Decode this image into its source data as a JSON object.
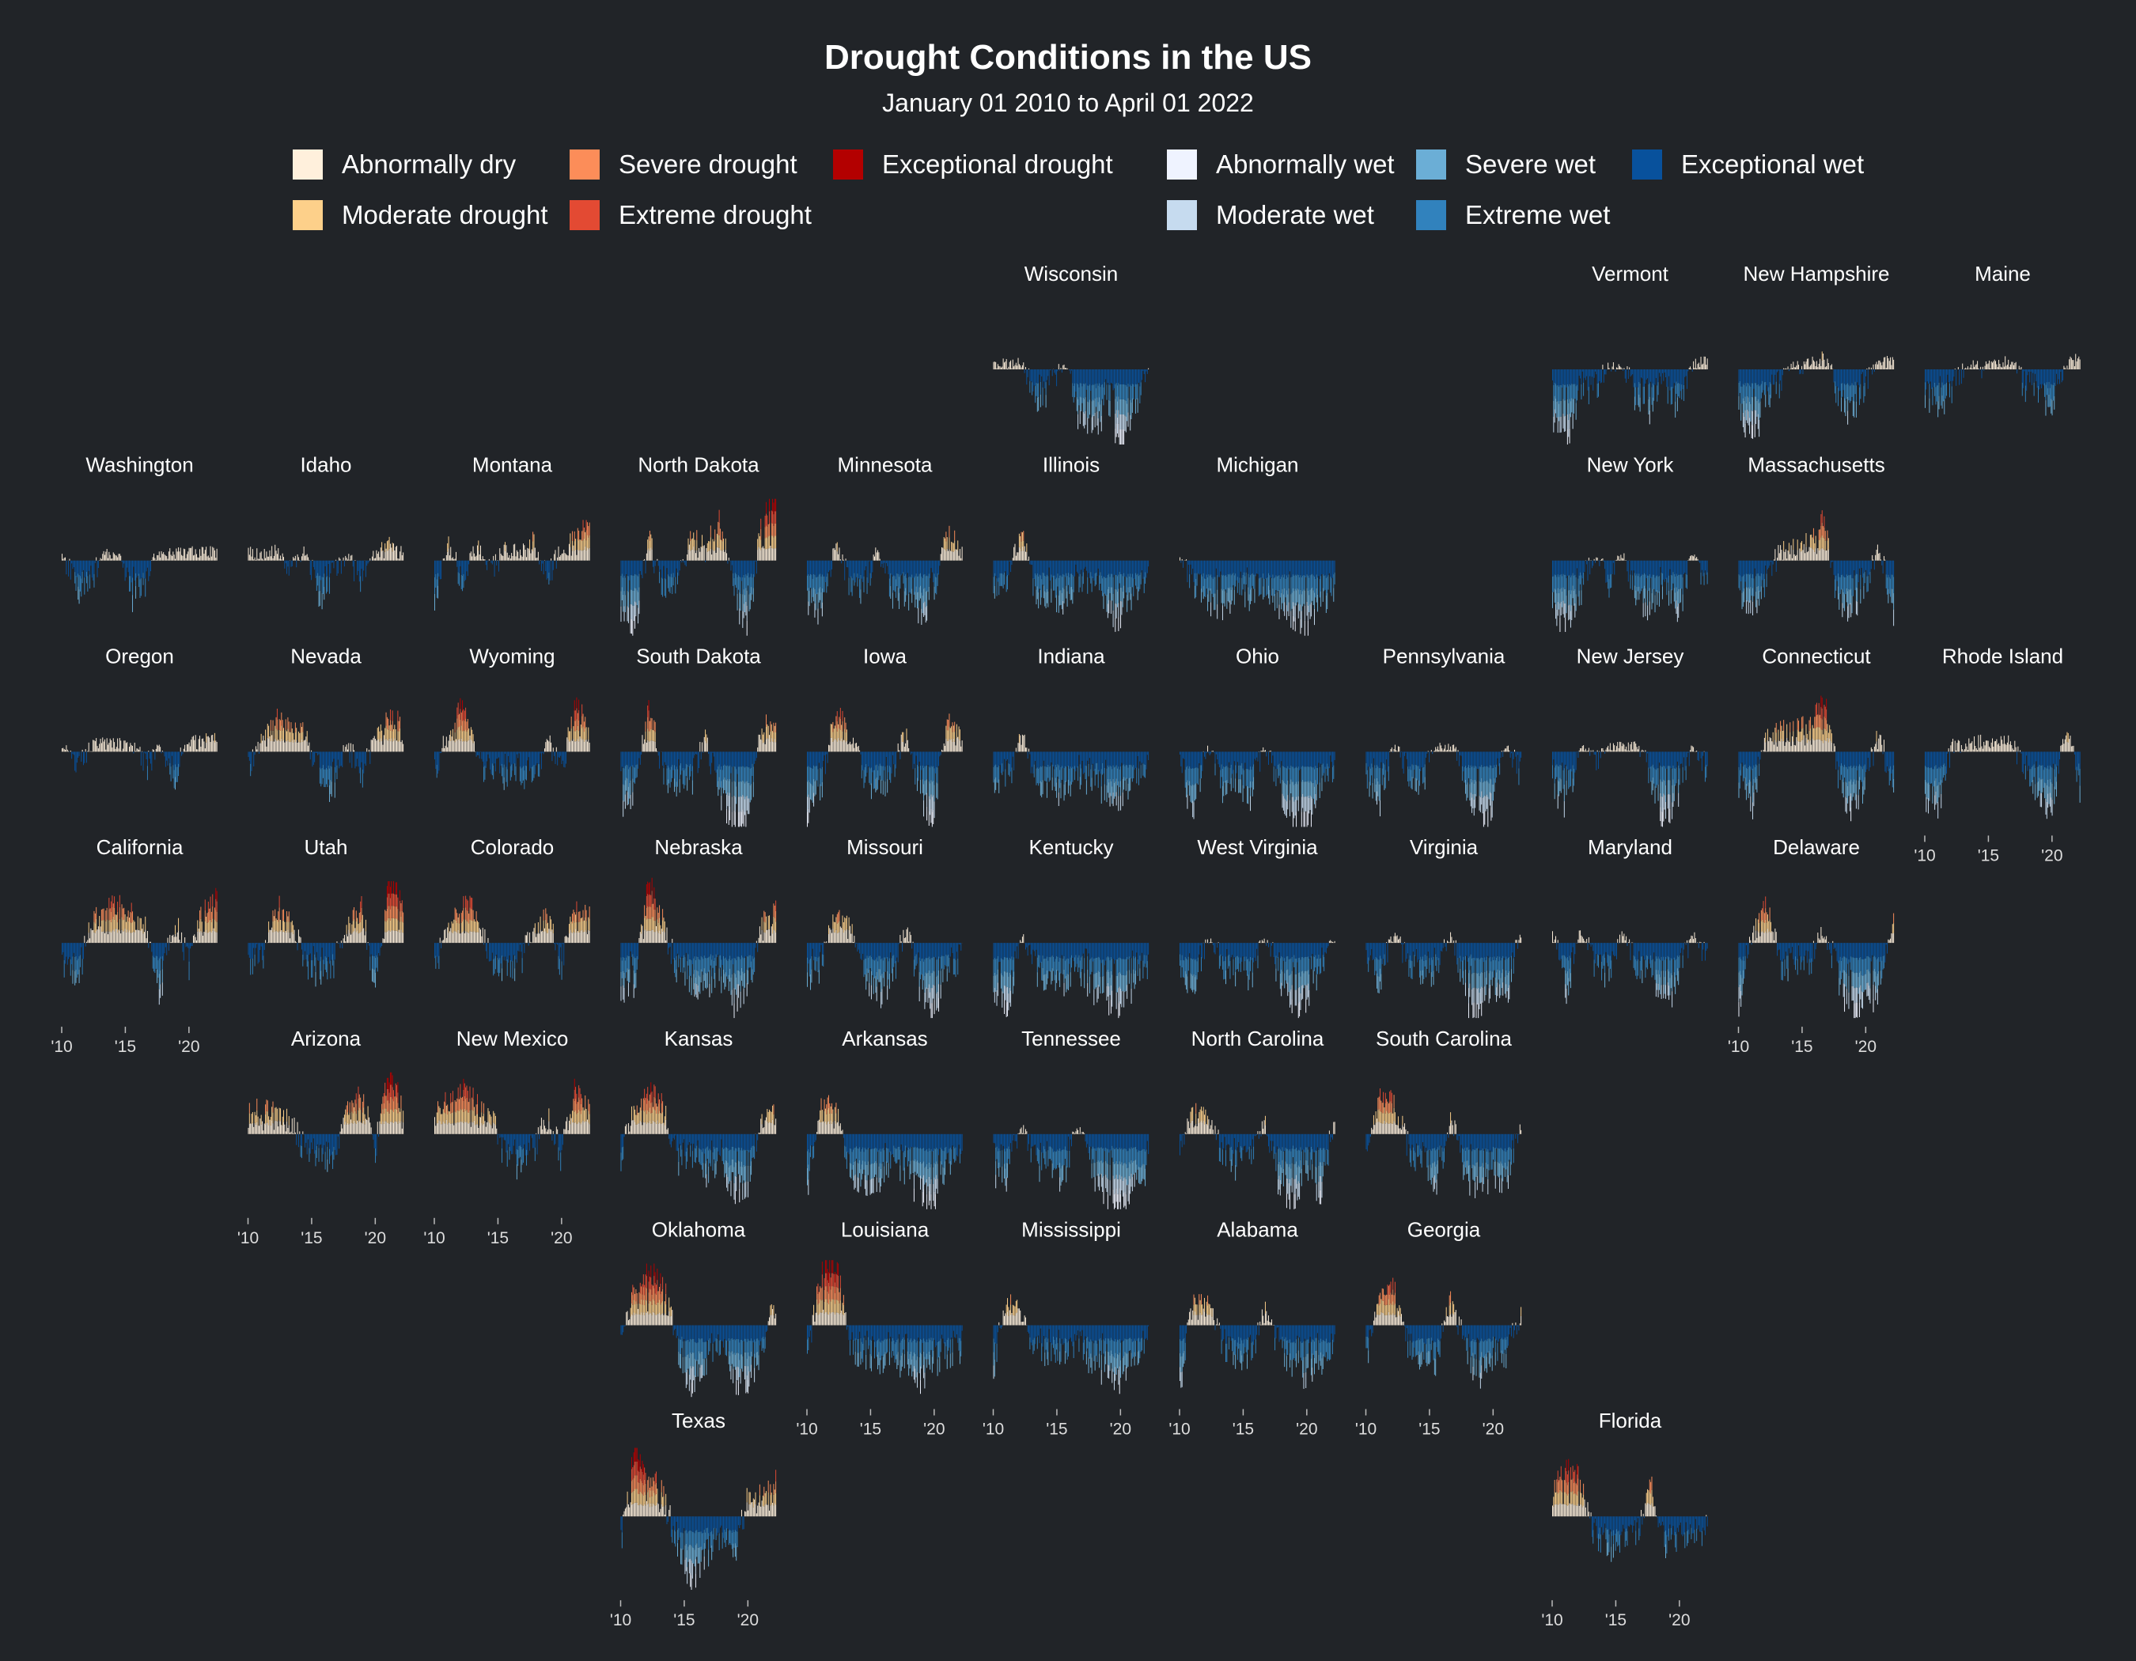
{
  "title": "Drought Conditions in the US",
  "subtitle": "January 01 2010 to April 01 2022",
  "legend": [
    {
      "label": "Abnormally dry",
      "color": "#fff0dc"
    },
    {
      "label": "Moderate drought",
      "color": "#fdd08a"
    },
    {
      "label": "Severe drought",
      "color": "#fc8d59"
    },
    {
      "label": "Extreme drought",
      "color": "#e34a33"
    },
    {
      "label": "Exceptional drought",
      "color": "#b30000"
    },
    {
      "label": "Abnormally wet",
      "color": "#eff3ff"
    },
    {
      "label": "Moderate wet",
      "color": "#c6dbef"
    },
    {
      "label": "Severe wet",
      "color": "#6baed6"
    },
    {
      "label": "Extreme wet",
      "color": "#3182bd"
    },
    {
      "label": "Exceptional wet",
      "color": "#08519c"
    }
  ],
  "chart_data": {
    "type": "bar",
    "layout": "small multiples arranged as a grid map of US states",
    "x_range": [
      "2010-01-01",
      "2022-04-01"
    ],
    "x_ticks": [
      "'10",
      "'15",
      "'20"
    ],
    "x_tick_values": [
      2010,
      2015,
      2020
    ],
    "axis_shown_for": [
      "California",
      "Arizona",
      "New Mexico",
      "Texas",
      "Louisiana",
      "Mississippi",
      "Alabama",
      "Georgia",
      "Florida",
      "Delaware",
      "Rhode Island"
    ],
    "sign_convention": "dry conditions above the baseline, wet conditions below",
    "states": [
      {
        "name": "Wisconsin",
        "row": 0,
        "col": 5,
        "profile": [
          0.3,
          0.2,
          0.3,
          -0.5,
          -0.2,
          0.2,
          -0.6,
          -0.8,
          -0.5,
          -0.9,
          -0.6,
          0.2
        ],
        "drought_peak": 0.35
      },
      {
        "name": "Vermont",
        "row": 0,
        "col": 8,
        "profile": [
          -0.6,
          -0.9,
          -0.3,
          -0.3,
          0.2,
          0.1,
          -0.4,
          -0.6,
          -0.2,
          -0.5,
          0.2,
          0.4
        ],
        "drought_peak": 0.35
      },
      {
        "name": "New Hampshire",
        "row": 0,
        "col": 9,
        "profile": [
          -0.5,
          -1.0,
          -0.3,
          -0.2,
          0.1,
          0.2,
          0.5,
          -0.3,
          -0.6,
          -0.2,
          0.3,
          0.3
        ],
        "drought_peak": 0.4
      },
      {
        "name": "Maine",
        "row": 0,
        "col": 10,
        "profile": [
          -0.3,
          -0.5,
          -0.2,
          0.2,
          0.1,
          0.2,
          0.4,
          -0.2,
          -0.3,
          -0.6,
          0.2,
          0.6
        ],
        "drought_peak": 0.35
      },
      {
        "name": "Washington",
        "row": 1,
        "col": 0,
        "profile": [
          0.2,
          -0.4,
          -0.3,
          0.3,
          0.2,
          -0.5,
          -0.3,
          0.4,
          0.3,
          0.4,
          0.5,
          0.3
        ],
        "drought_peak": 0.35
      },
      {
        "name": "Idaho",
        "row": 1,
        "col": 1,
        "profile": [
          0.3,
          0.2,
          0.4,
          -0.2,
          0.3,
          -0.5,
          -0.2,
          0.2,
          -0.3,
          0.2,
          0.6,
          0.3
        ],
        "drought_peak": 0.45
      },
      {
        "name": "Montana",
        "row": 1,
        "col": 2,
        "profile": [
          -0.5,
          0.4,
          -0.4,
          0.5,
          -0.2,
          0.3,
          0.2,
          0.5,
          -0.3,
          0.3,
          0.6,
          0.9
        ],
        "drought_peak": 0.6
      },
      {
        "name": "North Dakota",
        "row": 1,
        "col": 3,
        "profile": [
          -0.7,
          -0.9,
          0.3,
          -0.4,
          -0.3,
          0.4,
          0.2,
          0.7,
          -0.4,
          -1.0,
          0.6,
          1.0
        ],
        "drought_peak": 0.9
      },
      {
        "name": "Minnesota",
        "row": 1,
        "col": 4,
        "profile": [
          -0.5,
          -0.7,
          0.3,
          -0.3,
          -0.4,
          0.2,
          -0.5,
          -0.4,
          -0.7,
          -0.5,
          0.8,
          0.2
        ],
        "drought_peak": 0.6
      },
      {
        "name": "Illinois",
        "row": 1,
        "col": 5,
        "profile": [
          -0.4,
          -0.3,
          0.7,
          -0.5,
          -0.4,
          -0.6,
          -0.3,
          -0.2,
          -0.6,
          -0.8,
          -0.4,
          -0.2
        ],
        "drought_peak": 0.6
      },
      {
        "name": "Michigan",
        "row": 1,
        "col": 6,
        "profile": [
          0.2,
          -0.3,
          -0.5,
          -0.6,
          -0.4,
          -0.5,
          -0.3,
          -0.6,
          -0.7,
          -0.8,
          -0.6,
          -0.4
        ],
        "drought_peak": 0.2
      },
      {
        "name": "New York",
        "row": 1,
        "col": 8,
        "profile": [
          -0.6,
          -0.9,
          -0.4,
          0.2,
          -0.3,
          0.2,
          -0.5,
          -0.6,
          -0.3,
          -0.7,
          0.2,
          -0.4
        ],
        "drought_peak": 0.3
      },
      {
        "name": "Massachusetts",
        "row": 1,
        "col": 9,
        "profile": [
          -0.4,
          -0.6,
          -0.2,
          0.2,
          0.2,
          0.3,
          0.8,
          -0.5,
          -0.7,
          -0.3,
          0.3,
          -0.8
        ],
        "drought_peak": 0.8
      },
      {
        "name": "Oregon",
        "row": 2,
        "col": 0,
        "profile": [
          0.3,
          -0.3,
          0.2,
          0.4,
          0.3,
          0.2,
          -0.2,
          0.2,
          -0.4,
          0.4,
          0.5,
          0.5
        ],
        "drought_peak": 0.4
      },
      {
        "name": "Nevada",
        "row": 2,
        "col": 1,
        "profile": [
          -0.2,
          0.3,
          0.7,
          0.5,
          0.4,
          -0.3,
          -0.5,
          0.2,
          -0.4,
          0.3,
          0.7,
          0.6
        ],
        "drought_peak": 0.7
      },
      {
        "name": "Wyoming",
        "row": 2,
        "col": 2,
        "profile": [
          -0.3,
          0.3,
          0.9,
          -0.2,
          -0.3,
          -0.3,
          -0.2,
          -0.4,
          0.2,
          -0.3,
          0.8,
          0.5
        ],
        "drought_peak": 0.8
      },
      {
        "name": "South Dakota",
        "row": 2,
        "col": 3,
        "profile": [
          -0.7,
          -0.6,
          0.8,
          -0.3,
          -0.5,
          -0.4,
          0.2,
          -0.6,
          -0.9,
          -1.0,
          0.5,
          0.4
        ],
        "drought_peak": 0.8
      },
      {
        "name": "Iowa",
        "row": 2,
        "col": 4,
        "profile": [
          -0.8,
          -0.5,
          0.8,
          0.6,
          -0.4,
          -0.5,
          -0.3,
          0.4,
          -0.6,
          -0.9,
          0.6,
          0.3
        ],
        "drought_peak": 0.7
      },
      {
        "name": "Indiana",
        "row": 2,
        "col": 5,
        "profile": [
          -0.4,
          -0.5,
          0.5,
          -0.4,
          -0.5,
          -0.6,
          -0.3,
          -0.4,
          -0.5,
          -0.7,
          -0.3,
          -0.2
        ],
        "drought_peak": 0.5
      },
      {
        "name": "Ohio",
        "row": 2,
        "col": 6,
        "profile": [
          -0.3,
          -0.8,
          0.2,
          -0.5,
          -0.4,
          -0.6,
          0.2,
          -0.5,
          -0.8,
          -1.0,
          -0.4,
          -0.3
        ],
        "drought_peak": 0.25
      },
      {
        "name": "Pennsylvania",
        "row": 2,
        "col": 7,
        "profile": [
          -0.3,
          -0.7,
          0.2,
          -0.3,
          -0.4,
          0.3,
          0.3,
          -0.4,
          -0.9,
          -0.8,
          0.2,
          -0.3
        ],
        "drought_peak": 0.3
      },
      {
        "name": "New Jersey",
        "row": 2,
        "col": 8,
        "profile": [
          -0.4,
          -0.8,
          0.3,
          -0.2,
          0.2,
          0.3,
          0.3,
          -0.4,
          -0.9,
          -0.5,
          0.2,
          -0.3
        ],
        "drought_peak": 0.3
      },
      {
        "name": "Connecticut",
        "row": 2,
        "col": 9,
        "profile": [
          -0.4,
          -0.7,
          0.2,
          0.3,
          0.3,
          0.4,
          0.9,
          -0.3,
          -0.8,
          -0.4,
          0.3,
          -0.6
        ],
        "drought_peak": 0.9
      },
      {
        "name": "Rhode Island",
        "row": 2,
        "col": 10,
        "profile": [
          -0.6,
          -0.7,
          0.2,
          0.2,
          0.3,
          0.3,
          0.3,
          -0.2,
          -0.5,
          -0.9,
          0.6,
          -0.5
        ],
        "drought_peak": 0.5
      },
      {
        "name": "California",
        "row": 3,
        "col": 0,
        "profile": [
          -0.3,
          -0.6,
          0.3,
          0.6,
          0.7,
          0.5,
          0.3,
          -0.7,
          0.5,
          -0.3,
          0.6,
          0.9
        ],
        "drought_peak": 0.8
      },
      {
        "name": "Utah",
        "row": 3,
        "col": 1,
        "profile": [
          -0.3,
          -0.2,
          0.6,
          0.4,
          -0.3,
          -0.4,
          -0.3,
          0.2,
          0.6,
          -0.7,
          1.0,
          0.7
        ],
        "drought_peak": 0.9
      },
      {
        "name": "Colorado",
        "row": 3,
        "col": 2,
        "profile": [
          -0.3,
          0.2,
          0.8,
          0.5,
          -0.3,
          -0.4,
          -0.3,
          0.2,
          0.5,
          -0.3,
          0.7,
          0.5
        ],
        "drought_peak": 0.8
      },
      {
        "name": "Nebraska",
        "row": 3,
        "col": 3,
        "profile": [
          -0.6,
          -0.5,
          1.0,
          0.3,
          -0.4,
          -0.5,
          -0.6,
          -0.4,
          -0.8,
          -0.6,
          0.3,
          0.5
        ],
        "drought_peak": 0.95
      },
      {
        "name": "Missouri",
        "row": 3,
        "col": 4,
        "profile": [
          -0.5,
          -0.3,
          0.7,
          0.4,
          -0.4,
          -0.7,
          -0.5,
          0.3,
          -0.6,
          -0.9,
          -0.3,
          -0.2
        ],
        "drought_peak": 0.6
      },
      {
        "name": "Kentucky",
        "row": 3,
        "col": 5,
        "profile": [
          -0.6,
          -0.9,
          0.3,
          -0.4,
          -0.5,
          -0.6,
          -0.3,
          -0.6,
          -0.8,
          -0.9,
          -0.5,
          -0.3
        ],
        "drought_peak": 0.3
      },
      {
        "name": "West Virginia",
        "row": 3,
        "col": 6,
        "profile": [
          -0.3,
          -0.6,
          0.2,
          -0.3,
          -0.4,
          -0.5,
          0.2,
          -0.4,
          -1.0,
          -0.7,
          -0.3,
          0.2
        ],
        "drought_peak": 0.2
      },
      {
        "name": "Virginia",
        "row": 3,
        "col": 7,
        "profile": [
          -0.3,
          -0.5,
          0.3,
          -0.3,
          -0.5,
          -0.4,
          0.3,
          -0.7,
          -1.0,
          -0.5,
          -0.8,
          0.4
        ],
        "drought_peak": 0.35
      },
      {
        "name": "Maryland",
        "row": 3,
        "col": 8,
        "profile": [
          0.3,
          -0.7,
          0.4,
          -0.3,
          -0.4,
          0.3,
          -0.3,
          -0.4,
          -0.8,
          -0.5,
          0.3,
          -0.3
        ],
        "drought_peak": 0.4
      },
      {
        "name": "Delaware",
        "row": 3,
        "col": 9,
        "profile": [
          -1.0,
          0.3,
          0.8,
          -0.4,
          -0.2,
          -0.3,
          0.3,
          -0.4,
          -1.0,
          -0.6,
          -0.8,
          0.4
        ],
        "drought_peak": 0.7
      },
      {
        "name": "Arizona",
        "row": 4,
        "col": 1,
        "profile": [
          0.3,
          0.4,
          0.3,
          0.2,
          -0.2,
          -0.3,
          -0.3,
          0.3,
          0.8,
          -0.2,
          1.0,
          0.4
        ],
        "drought_peak": 0.9
      },
      {
        "name": "New Mexico",
        "row": 4,
        "col": 2,
        "profile": [
          0.3,
          0.6,
          0.8,
          0.5,
          0.3,
          -0.3,
          -0.4,
          -0.2,
          0.3,
          -0.3,
          0.8,
          0.4
        ],
        "drought_peak": 0.85
      },
      {
        "name": "Kansas",
        "row": 4,
        "col": 3,
        "profile": [
          -0.3,
          0.5,
          0.8,
          0.5,
          -0.4,
          -0.3,
          -0.5,
          -0.4,
          -0.7,
          -0.8,
          0.3,
          0.4
        ],
        "drought_peak": 0.8
      },
      {
        "name": "Arkansas",
        "row": 4,
        "col": 4,
        "profile": [
          -0.8,
          0.7,
          0.6,
          -0.5,
          -0.6,
          -0.7,
          -0.3,
          -0.5,
          -0.8,
          -0.9,
          -0.4,
          -0.3
        ],
        "drought_peak": 0.7
      },
      {
        "name": "Tennessee",
        "row": 4,
        "col": 5,
        "profile": [
          -0.5,
          -0.6,
          0.3,
          -0.4,
          -0.5,
          -0.6,
          0.3,
          -0.5,
          -0.8,
          -1.0,
          -0.7,
          -0.4
        ],
        "drought_peak": 0.3
      },
      {
        "name": "North Carolina",
        "row": 4,
        "col": 6,
        "profile": [
          -0.3,
          0.6,
          0.4,
          -0.3,
          -0.4,
          -0.3,
          0.3,
          -0.6,
          -0.9,
          -0.4,
          -0.8,
          0.3
        ],
        "drought_peak": 0.6
      },
      {
        "name": "South Carolina",
        "row": 4,
        "col": 7,
        "profile": [
          -0.4,
          0.8,
          0.6,
          -0.2,
          -0.4,
          -0.7,
          0.3,
          -0.5,
          -0.8,
          -0.5,
          -0.7,
          0.3
        ],
        "drought_peak": 0.75
      },
      {
        "name": "Oklahoma",
        "row": 5,
        "col": 3,
        "profile": [
          -0.3,
          0.6,
          0.9,
          0.7,
          -0.3,
          -0.8,
          -0.5,
          -0.3,
          -0.7,
          -0.8,
          -0.3,
          0.4
        ],
        "drought_peak": 0.9
      },
      {
        "name": "Louisiana",
        "row": 5,
        "col": 4,
        "profile": [
          -0.5,
          0.8,
          1.0,
          -0.3,
          -0.4,
          -0.5,
          -0.3,
          -0.6,
          -0.7,
          -0.5,
          -0.4,
          -0.3
        ],
        "drought_peak": 0.95
      },
      {
        "name": "Mississippi",
        "row": 5,
        "col": 5,
        "profile": [
          -0.6,
          0.6,
          0.3,
          -0.4,
          -0.3,
          -0.4,
          -0.2,
          -0.5,
          -0.6,
          -0.8,
          -0.4,
          -0.2
        ],
        "drought_peak": 0.6
      },
      {
        "name": "Alabama",
        "row": 5,
        "col": 6,
        "profile": [
          -0.9,
          0.6,
          0.5,
          -0.3,
          -0.4,
          -0.5,
          0.4,
          -0.3,
          -0.5,
          -0.7,
          -0.5,
          -0.2
        ],
        "drought_peak": 0.6
      },
      {
        "name": "Georgia",
        "row": 5,
        "col": 7,
        "profile": [
          -0.5,
          0.7,
          0.8,
          -0.3,
          -0.4,
          -0.5,
          0.5,
          -0.3,
          -0.7,
          -0.4,
          -0.4,
          0.2
        ],
        "drought_peak": 0.7
      },
      {
        "name": "Texas",
        "row": 6,
        "col": 3,
        "profile": [
          -0.3,
          1.0,
          0.6,
          0.3,
          -0.4,
          -0.9,
          -0.5,
          -0.3,
          -0.6,
          0.3,
          0.3,
          0.5
        ],
        "drought_peak": 1.0
      },
      {
        "name": "Florida",
        "row": 6,
        "col": 8,
        "profile": [
          0.3,
          0.9,
          0.6,
          -0.3,
          -0.4,
          -0.3,
          -0.2,
          0.5,
          -0.4,
          -0.3,
          -0.2,
          -0.2
        ],
        "drought_peak": 0.9
      }
    ]
  }
}
